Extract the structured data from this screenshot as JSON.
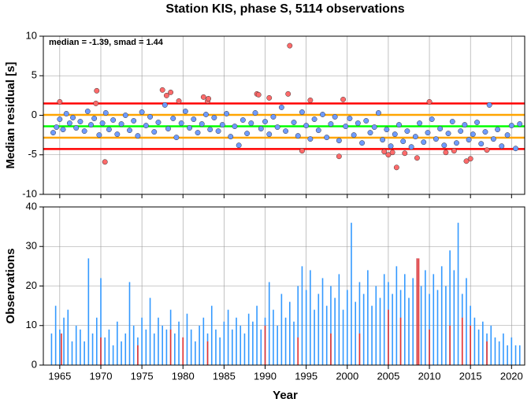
{
  "title": "Station KIS, phase S, 5114 observations",
  "x_label": "Year",
  "chart_data": [
    {
      "type": "scatter",
      "y_label": "Median residual [s]",
      "annotation": "median = -1.39, smad = 1.44",
      "xlim": [
        1963,
        2021.6
      ],
      "xticks": [
        1965,
        1970,
        1975,
        1980,
        1985,
        1990,
        1995,
        2000,
        2005,
        2010,
        2015,
        2020
      ],
      "xtick_labels": false,
      "ylim": [
        -10,
        10
      ],
      "yticks": [
        -10,
        -5,
        0,
        5,
        10
      ],
      "grid": true,
      "hlines": [
        {
          "value": 1.49,
          "color": "#ff0000"
        },
        {
          "value": 0.05,
          "color": "#ffa500"
        },
        {
          "value": -1.39,
          "color": "#00ff00"
        },
        {
          "value": -2.83,
          "color": "#ffa500"
        },
        {
          "value": -4.27,
          "color": "#ff0000"
        }
      ],
      "series": [
        {
          "color": "#6f9bff",
          "x": [
            1964.2,
            1964.6,
            1965.0,
            1965.4,
            1965.8,
            1966.2,
            1966.6,
            1967.0,
            1967.5,
            1968.0,
            1968.4,
            1968.8,
            1969.2,
            1969.8,
            1970.2,
            1970.6,
            1971.0,
            1971.5,
            1972.0,
            1972.5,
            1973.0,
            1973.5,
            1974.0,
            1974.5,
            1975.0,
            1975.5,
            1976.0,
            1976.5,
            1977.0,
            1977.8,
            1978.2,
            1978.8,
            1979.2,
            1979.8,
            1980.3,
            1980.8,
            1981.3,
            1981.8,
            1982.3,
            1982.8,
            1983.3,
            1983.8,
            1984.3,
            1984.8,
            1985.3,
            1985.8,
            1986.3,
            1986.8,
            1987.3,
            1987.8,
            1988.3,
            1988.8,
            1989.5,
            1990.0,
            1990.5,
            1991.0,
            1991.5,
            1992.0,
            1992.5,
            1993.5,
            1994.0,
            1994.5,
            1995.0,
            1995.5,
            1996.0,
            1996.5,
            1997.0,
            1997.5,
            1998.0,
            1998.5,
            1999.0,
            1999.8,
            2000.3,
            2000.8,
            2001.3,
            2001.8,
            2002.3,
            2002.8,
            2003.3,
            2003.8,
            2004.3,
            2004.8,
            2005.3,
            2005.8,
            2006.3,
            2006.8,
            2007.3,
            2007.8,
            2008.3,
            2008.8,
            2009.3,
            2009.8,
            2010.3,
            2010.8,
            2011.3,
            2011.8,
            2012.3,
            2012.8,
            2013.3,
            2013.8,
            2014.3,
            2014.8,
            2015.3,
            2015.8,
            2016.3,
            2016.8,
            2017.3,
            2017.8,
            2018.3,
            2018.8,
            2019.5,
            2020.0,
            2020.5,
            2021.0
          ],
          "values": [
            -2.2,
            -1.5,
            -0.5,
            -1.8,
            0.2,
            -1.0,
            -0.3,
            -1.6,
            -0.8,
            -2.0,
            0.5,
            -1.2,
            -0.4,
            -2.5,
            -1.0,
            0.3,
            -1.8,
            -0.6,
            -2.4,
            -1.1,
            0.0,
            -1.9,
            -0.7,
            -2.6,
            0.4,
            -1.3,
            -0.2,
            -2.1,
            -0.9,
            1.3,
            -1.7,
            -0.4,
            -2.8,
            -1.0,
            0.5,
            -1.6,
            -0.5,
            -2.2,
            -1.1,
            0.1,
            -1.8,
            -0.3,
            -2.0,
            -1.2,
            0.2,
            -2.7,
            -1.4,
            -3.8,
            -0.6,
            -2.3,
            -1.0,
            0.3,
            -1.7,
            -0.8,
            -2.4,
            -0.2,
            -1.5,
            1.0,
            -2.0,
            -0.9,
            -2.6,
            0.4,
            -1.3,
            -3.0,
            -0.5,
            -1.9,
            0.1,
            -2.8,
            -1.1,
            -0.2,
            -3.2,
            -1.4,
            -0.4,
            -2.5,
            -1.0,
            -3.5,
            -0.7,
            -2.2,
            -1.5,
            0.3,
            -3.1,
            -1.8,
            -3.9,
            -2.4,
            -1.2,
            -3.3,
            -2.0,
            -4.0,
            -2.7,
            -1.0,
            -3.4,
            -2.2,
            -0.5,
            -3.0,
            -1.7,
            -3.8,
            -2.3,
            -0.8,
            -3.5,
            -2.0,
            -1.2,
            -3.1,
            -2.4,
            -0.9,
            -3.6,
            -2.1,
            1.3,
            -3.0,
            -1.8,
            -3.9,
            -2.5,
            -1.3,
            -4.2,
            -1.1
          ]
        },
        {
          "color": "#ff6a6a",
          "x": [
            1965.0,
            1969.4,
            1969.5,
            1970.5,
            1977.5,
            1978.0,
            1978.5,
            1979.5,
            1982.5,
            1983.0,
            1983.1,
            1989.0,
            1989.2,
            1990.5,
            1992.8,
            1993.0,
            1994.5,
            1995.5,
            1999.0,
            1999.5,
            2004.5,
            2005.0,
            2005.5,
            2006.0,
            2007.0,
            2008.5,
            2010.0,
            2012.0,
            2013.0,
            2014.5,
            2015.0,
            2017.0
          ],
          "values": [
            1.7,
            1.5,
            3.1,
            -5.9,
            3.2,
            2.5,
            2.9,
            1.8,
            2.3,
            1.8,
            2.1,
            2.7,
            2.6,
            2.2,
            2.7,
            8.8,
            -4.5,
            1.9,
            -5.2,
            2.0,
            -4.6,
            -5.0,
            -4.7,
            -6.6,
            -4.8,
            -5.4,
            1.7,
            -4.7,
            -4.5,
            -5.8,
            -5.5,
            -4.4
          ]
        }
      ]
    },
    {
      "type": "bar",
      "y_label": "Observations",
      "xlim": [
        1963,
        2021.6
      ],
      "xticks": [
        1965,
        1970,
        1975,
        1980,
        1985,
        1990,
        1995,
        2000,
        2005,
        2010,
        2015,
        2020
      ],
      "xtick_labels": true,
      "ylim": [
        0,
        40
      ],
      "yticks": [
        0,
        10,
        20,
        30,
        40
      ],
      "grid": true,
      "series": [
        {
          "color": "#3399ff",
          "x": [
            1964.0,
            1964.5,
            1965.0,
            1965.5,
            1966.0,
            1966.5,
            1967.0,
            1967.5,
            1968.0,
            1968.5,
            1969.0,
            1969.5,
            1970.0,
            1970.5,
            1971.0,
            1971.5,
            1972.0,
            1972.5,
            1973.0,
            1973.5,
            1974.0,
            1974.5,
            1975.0,
            1975.5,
            1976.0,
            1976.5,
            1977.0,
            1977.5,
            1978.0,
            1978.5,
            1979.0,
            1979.5,
            1980.0,
            1980.5,
            1981.0,
            1981.5,
            1982.0,
            1982.5,
            1983.0,
            1983.5,
            1984.0,
            1984.5,
            1985.0,
            1985.5,
            1986.0,
            1986.5,
            1987.0,
            1987.5,
            1988.0,
            1988.5,
            1989.0,
            1989.5,
            1990.0,
            1990.5,
            1991.0,
            1991.5,
            1992.0,
            1992.5,
            1993.0,
            1993.5,
            1994.0,
            1994.5,
            1995.0,
            1995.5,
            1996.0,
            1996.5,
            1997.0,
            1997.5,
            1998.0,
            1998.5,
            1999.0,
            1999.5,
            2000.0,
            2000.5,
            2001.0,
            2001.5,
            2002.0,
            2002.5,
            2003.0,
            2003.5,
            2004.0,
            2004.5,
            2005.0,
            2005.5,
            2006.0,
            2006.5,
            2007.0,
            2007.5,
            2008.0,
            2008.5,
            2009.0,
            2009.5,
            2010.0,
            2010.5,
            2011.0,
            2011.5,
            2012.0,
            2012.5,
            2013.0,
            2013.5,
            2014.0,
            2014.5,
            2015.0,
            2015.5,
            2016.0,
            2016.5,
            2017.0,
            2017.5,
            2018.0,
            2018.5,
            2019.0,
            2019.5,
            2020.0,
            2020.5,
            2021.0
          ],
          "values": [
            8,
            15,
            9,
            12,
            14,
            6,
            10,
            9,
            6,
            27,
            8,
            12,
            22,
            7,
            9,
            5,
            11,
            6,
            8,
            21,
            10,
            7,
            12,
            9,
            17,
            8,
            12,
            10,
            9,
            14,
            8,
            11,
            7,
            13,
            9,
            6,
            10,
            12,
            8,
            15,
            9,
            7,
            11,
            14,
            9,
            12,
            10,
            8,
            13,
            11,
            15,
            9,
            12,
            21,
            14,
            10,
            18,
            12,
            16,
            11,
            20,
            25,
            19,
            24,
            14,
            18,
            22,
            15,
            20,
            17,
            23,
            14,
            19,
            36,
            16,
            21,
            18,
            24,
            15,
            20,
            17,
            23,
            21,
            18,
            25,
            19,
            23,
            17,
            22,
            27,
            20,
            24,
            18,
            23,
            19,
            25,
            20,
            29,
            24,
            36,
            18,
            22,
            15,
            12,
            9,
            11,
            8,
            10,
            7,
            6,
            8,
            5,
            7,
            5,
            5
          ]
        },
        {
          "color": "#e8322f",
          "x": [
            1965.2,
            1970.0,
            1974.5,
            1978.5,
            1980.0,
            1983.0,
            1990.0,
            1994.0,
            1998.0,
            2001.5,
            2005.0,
            2006.5,
            2008.5,
            2008.7,
            2010.0,
            2012.5,
            2014.0,
            2015.0,
            2017.0
          ],
          "values": [
            8,
            7,
            5,
            9,
            7,
            6,
            10,
            7,
            8,
            8,
            14,
            12,
            27,
            27,
            9,
            10,
            12,
            10,
            6
          ]
        }
      ]
    }
  ]
}
